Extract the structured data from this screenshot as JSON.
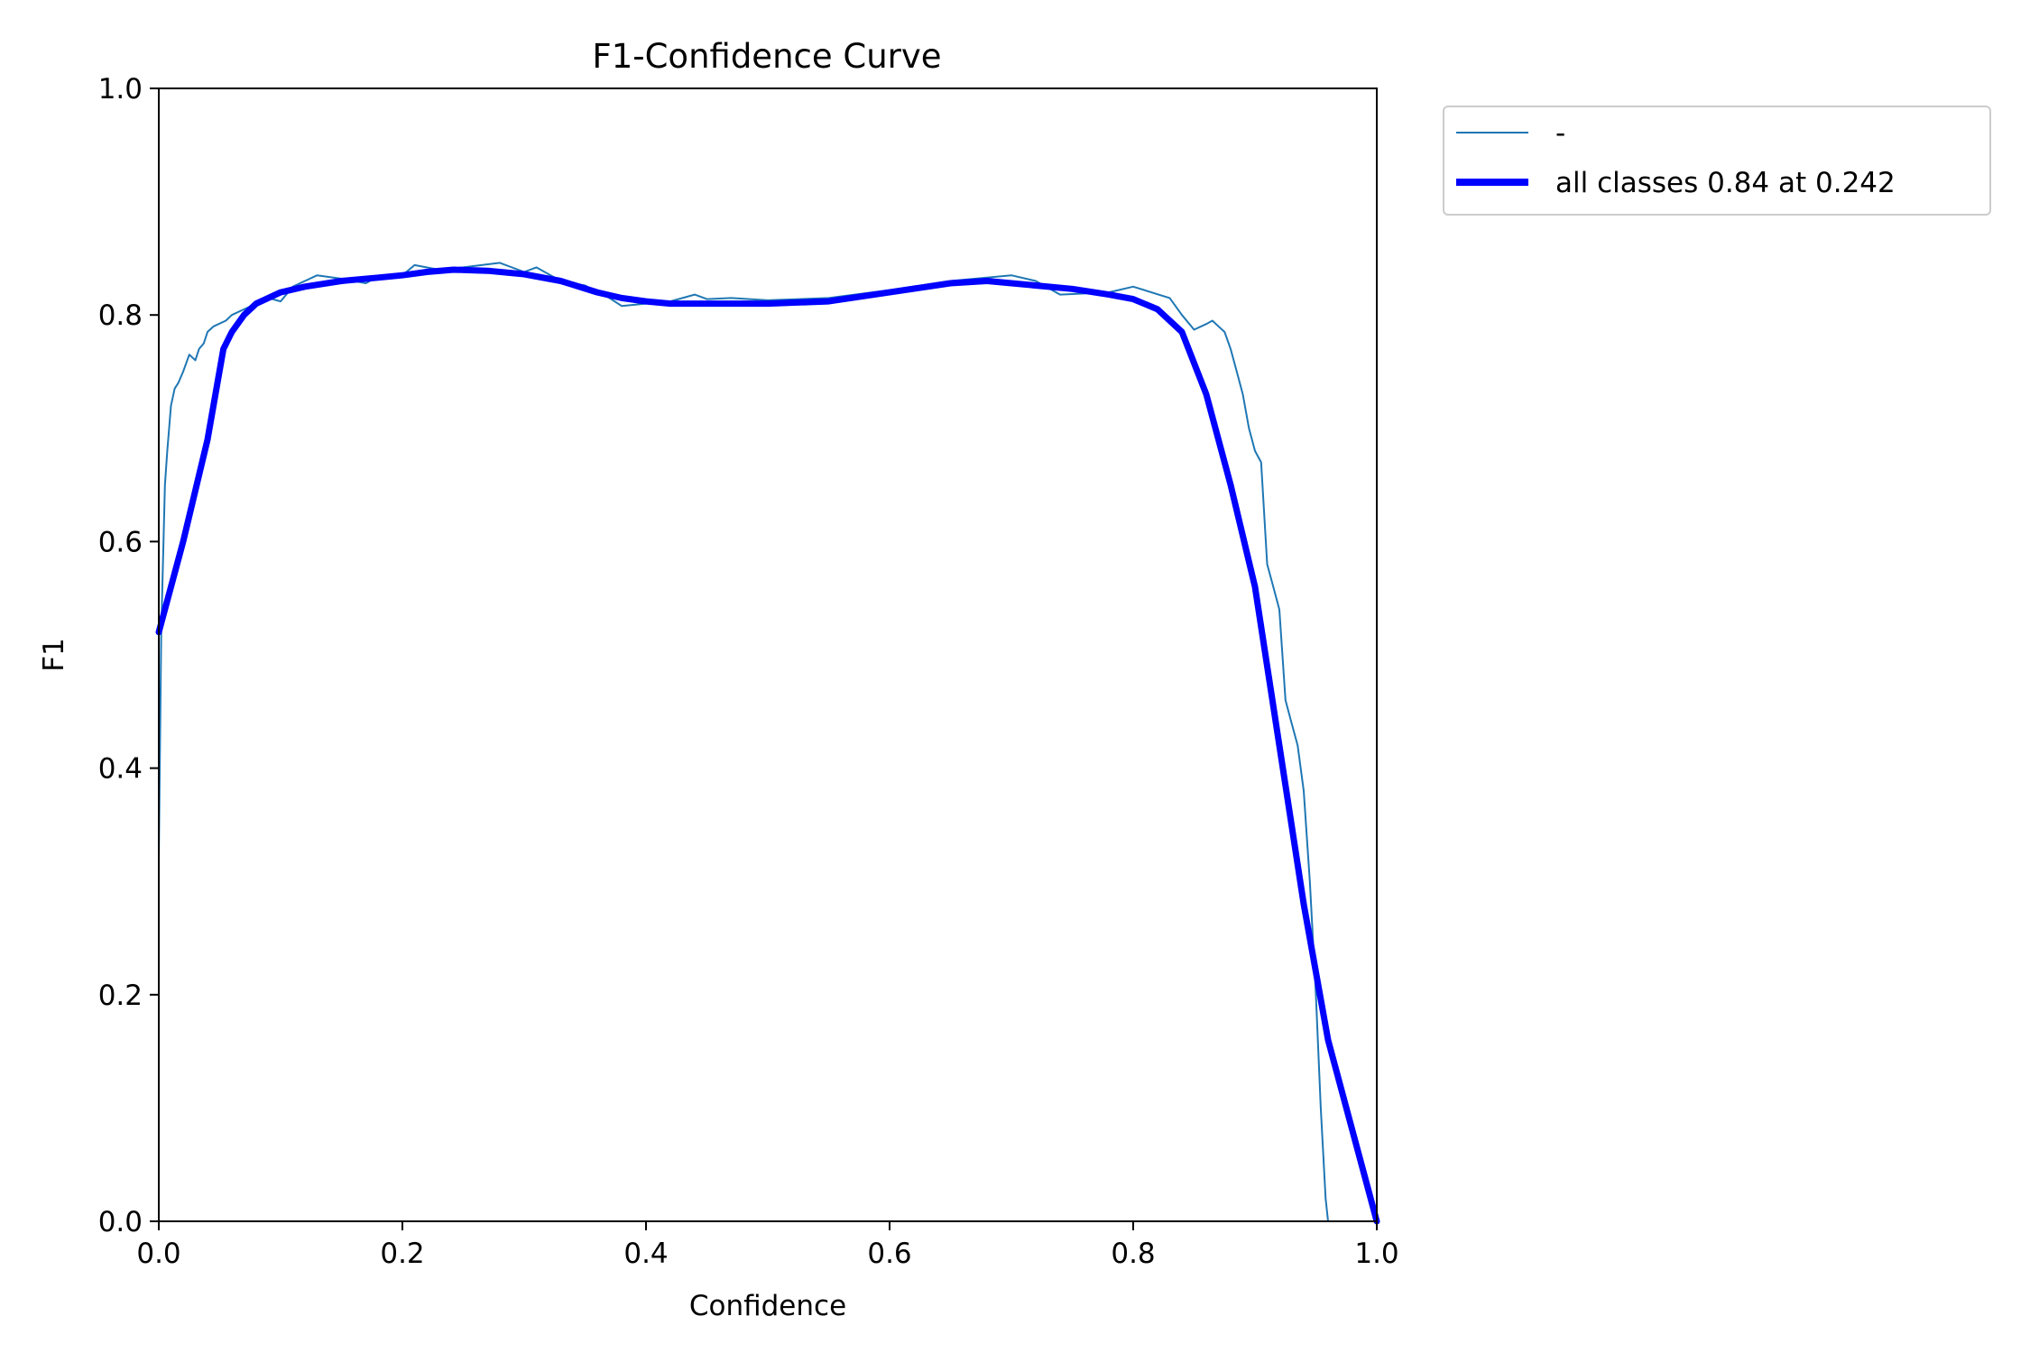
{
  "chart_data": {
    "type": "line",
    "title": "F1-Confidence Curve",
    "xlabel": "Confidence",
    "ylabel": "F1",
    "xlim": [
      0.0,
      1.0
    ],
    "ylim": [
      0.0,
      1.0
    ],
    "xticks": [
      "0.0",
      "0.2",
      "0.4",
      "0.6",
      "0.8",
      "1.0"
    ],
    "yticks": [
      "0.0",
      "0.2",
      "0.4",
      "0.6",
      "0.8",
      "1.0"
    ],
    "grid": false,
    "legend_position": "outside top-right",
    "series": [
      {
        "name": "-",
        "color": "#1f77b4",
        "style": "thin",
        "x": [
          0.0,
          0.002,
          0.005,
          0.007,
          0.01,
          0.013,
          0.016,
          0.02,
          0.025,
          0.03,
          0.033,
          0.037,
          0.04,
          0.045,
          0.055,
          0.06,
          0.07,
          0.08,
          0.09,
          0.1,
          0.11,
          0.12,
          0.13,
          0.15,
          0.17,
          0.18,
          0.2,
          0.21,
          0.23,
          0.25,
          0.28,
          0.3,
          0.31,
          0.33,
          0.35,
          0.37,
          0.38,
          0.4,
          0.42,
          0.44,
          0.45,
          0.47,
          0.5,
          0.55,
          0.6,
          0.65,
          0.7,
          0.72,
          0.74,
          0.78,
          0.8,
          0.83,
          0.84,
          0.85,
          0.86,
          0.865,
          0.87,
          0.875,
          0.88,
          0.885,
          0.89,
          0.895,
          0.9,
          0.905,
          0.91,
          0.915,
          0.92,
          0.925,
          0.93,
          0.935,
          0.94,
          0.945,
          0.95,
          0.954,
          0.956,
          0.958,
          0.96,
          0.97,
          0.98,
          1.0
        ],
        "y": [
          0.32,
          0.52,
          0.65,
          0.68,
          0.72,
          0.735,
          0.74,
          0.75,
          0.765,
          0.76,
          0.77,
          0.775,
          0.785,
          0.79,
          0.795,
          0.8,
          0.805,
          0.81,
          0.815,
          0.812,
          0.825,
          0.83,
          0.835,
          0.832,
          0.828,
          0.834,
          0.835,
          0.844,
          0.84,
          0.842,
          0.846,
          0.838,
          0.842,
          0.83,
          0.826,
          0.815,
          0.808,
          0.81,
          0.812,
          0.818,
          0.814,
          0.815,
          0.813,
          0.815,
          0.822,
          0.83,
          0.835,
          0.83,
          0.818,
          0.82,
          0.825,
          0.815,
          0.8,
          0.787,
          0.792,
          0.795,
          0.79,
          0.785,
          0.77,
          0.75,
          0.73,
          0.7,
          0.68,
          0.67,
          0.58,
          0.56,
          0.54,
          0.46,
          0.44,
          0.42,
          0.38,
          0.3,
          0.2,
          0.1,
          0.06,
          0.02,
          0.0,
          0.0,
          0.0,
          0.0
        ]
      },
      {
        "name": "all classes 0.84 at 0.242",
        "color": "#0000ff",
        "style": "thick",
        "x": [
          0.0,
          0.02,
          0.04,
          0.053,
          0.06,
          0.07,
          0.08,
          0.1,
          0.12,
          0.15,
          0.18,
          0.2,
          0.22,
          0.242,
          0.27,
          0.3,
          0.33,
          0.36,
          0.38,
          0.4,
          0.42,
          0.45,
          0.5,
          0.55,
          0.6,
          0.65,
          0.68,
          0.7,
          0.75,
          0.78,
          0.8,
          0.82,
          0.84,
          0.86,
          0.88,
          0.9,
          0.92,
          0.94,
          0.96,
          0.98,
          1.0
        ],
        "y": [
          0.52,
          0.6,
          0.69,
          0.77,
          0.785,
          0.8,
          0.81,
          0.82,
          0.825,
          0.83,
          0.833,
          0.835,
          0.838,
          0.84,
          0.839,
          0.836,
          0.83,
          0.82,
          0.815,
          0.812,
          0.81,
          0.81,
          0.81,
          0.812,
          0.82,
          0.828,
          0.83,
          0.828,
          0.823,
          0.818,
          0.814,
          0.805,
          0.785,
          0.73,
          0.65,
          0.56,
          0.42,
          0.28,
          0.16,
          0.08,
          0.0
        ]
      }
    ]
  }
}
